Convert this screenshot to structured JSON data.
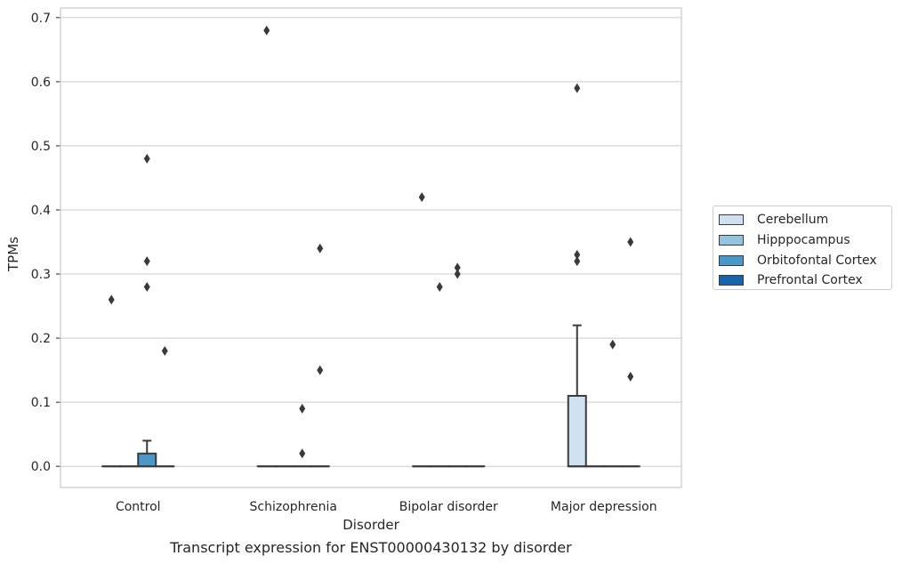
{
  "caption": "Transcript expression for ENST00000430132 by disorder",
  "chart_data": {
    "type": "box",
    "xlabel": "Disorder",
    "ylabel": "TPMs",
    "categories": [
      "Control",
      "Schizophrenia",
      "Bipolar disorder",
      "Major depression"
    ],
    "ylim": [
      -0.033,
      0.715
    ],
    "yticks": [
      0.0,
      0.1,
      0.2,
      0.3,
      0.4,
      0.5,
      0.6,
      0.7
    ],
    "ytick_labels": [
      "0.0",
      "0.1",
      "0.2",
      "0.3",
      "0.4",
      "0.5",
      "0.6",
      "0.7"
    ],
    "grid": true,
    "legend_position": "right",
    "series": [
      {
        "name": "Cerebellum",
        "color": "#d0e1f2",
        "boxes": [
          {
            "q1": 0,
            "median": 0,
            "q3": 0,
            "whisker_low": 0,
            "whisker_high": 0,
            "outliers": [
              0.26
            ]
          },
          {
            "q1": 0,
            "median": 0,
            "q3": 0,
            "whisker_low": 0,
            "whisker_high": 0,
            "outliers": [
              0.68
            ]
          },
          {
            "q1": 0,
            "median": 0,
            "q3": 0,
            "whisker_low": 0,
            "whisker_high": 0,
            "outliers": [
              0.42
            ]
          },
          {
            "q1": 0,
            "median": 0,
            "q3": 0.11,
            "whisker_low": 0,
            "whisker_high": 0.22,
            "outliers": [
              0.59,
              0.33,
              0.32
            ]
          }
        ]
      },
      {
        "name": "Hipppocampus",
        "color": "#94c4df",
        "boxes": [
          {
            "q1": 0,
            "median": 0,
            "q3": 0,
            "whisker_low": 0,
            "whisker_high": 0,
            "outliers": []
          },
          {
            "q1": 0,
            "median": 0,
            "q3": 0,
            "whisker_low": 0,
            "whisker_high": 0,
            "outliers": []
          },
          {
            "q1": 0,
            "median": 0,
            "q3": 0,
            "whisker_low": 0,
            "whisker_high": 0,
            "outliers": [
              0.28
            ]
          },
          {
            "q1": 0,
            "median": 0,
            "q3": 0,
            "whisker_low": 0,
            "whisker_high": 0,
            "outliers": []
          }
        ]
      },
      {
        "name": "Orbitofontal Cortex",
        "color": "#4a98c9",
        "boxes": [
          {
            "q1": 0,
            "median": 0,
            "q3": 0.02,
            "whisker_low": 0,
            "whisker_high": 0.04,
            "outliers": [
              0.48,
              0.32,
              0.28
            ]
          },
          {
            "q1": 0,
            "median": 0,
            "q3": 0,
            "whisker_low": 0,
            "whisker_high": 0,
            "outliers": [
              0.09,
              0.02
            ]
          },
          {
            "q1": 0,
            "median": 0,
            "q3": 0,
            "whisker_low": 0,
            "whisker_high": 0,
            "outliers": [
              0.31,
              0.3
            ]
          },
          {
            "q1": 0,
            "median": 0,
            "q3": 0,
            "whisker_low": 0,
            "whisker_high": 0,
            "outliers": [
              0.19
            ]
          }
        ]
      },
      {
        "name": "Prefrontal Cortex",
        "color": "#1764ab",
        "boxes": [
          {
            "q1": 0,
            "median": 0,
            "q3": 0,
            "whisker_low": 0,
            "whisker_high": 0,
            "outliers": [
              0.18
            ]
          },
          {
            "q1": 0,
            "median": 0,
            "q3": 0,
            "whisker_low": 0,
            "whisker_high": 0,
            "outliers": [
              0.34,
              0.15
            ]
          },
          {
            "q1": 0,
            "median": 0,
            "q3": 0,
            "whisker_low": 0,
            "whisker_high": 0,
            "outliers": []
          },
          {
            "q1": 0,
            "median": 0,
            "q3": 0,
            "whisker_low": 0,
            "whisker_high": 0,
            "outliers": [
              0.35,
              0.14
            ]
          }
        ]
      }
    ]
  }
}
